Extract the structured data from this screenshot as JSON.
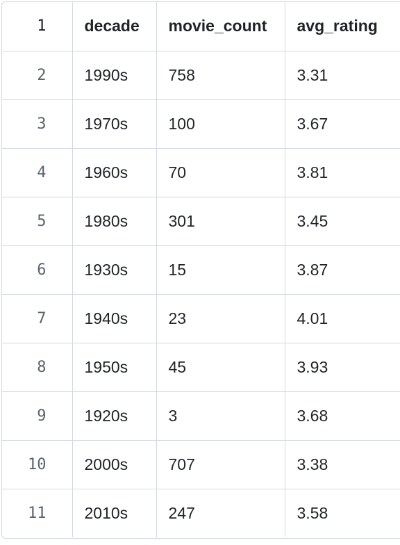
{
  "table": {
    "headers": [
      "decade",
      "movie_count",
      "avg_rating"
    ],
    "header_line_number": "1",
    "rows": [
      {
        "line": "2",
        "decade": "1990s",
        "movie_count": "758",
        "avg_rating": "3.31"
      },
      {
        "line": "3",
        "decade": "1970s",
        "movie_count": "100",
        "avg_rating": "3.67"
      },
      {
        "line": "4",
        "decade": "1960s",
        "movie_count": "70",
        "avg_rating": "3.81"
      },
      {
        "line": "5",
        "decade": "1980s",
        "movie_count": "301",
        "avg_rating": "3.45"
      },
      {
        "line": "6",
        "decade": "1930s",
        "movie_count": "15",
        "avg_rating": "3.87"
      },
      {
        "line": "7",
        "decade": "1940s",
        "movie_count": "23",
        "avg_rating": "4.01"
      },
      {
        "line": "8",
        "decade": "1950s",
        "movie_count": "45",
        "avg_rating": "3.93"
      },
      {
        "line": "9",
        "decade": "1920s",
        "movie_count": "3",
        "avg_rating": "3.68"
      },
      {
        "line": "10",
        "decade": "2000s",
        "movie_count": "707",
        "avg_rating": "3.38"
      },
      {
        "line": "11",
        "decade": "2010s",
        "movie_count": "247",
        "avg_rating": "3.58"
      }
    ]
  },
  "colors": {
    "border": "#d1d9e0",
    "text": "#1f2328",
    "line_number": "#59636e"
  }
}
